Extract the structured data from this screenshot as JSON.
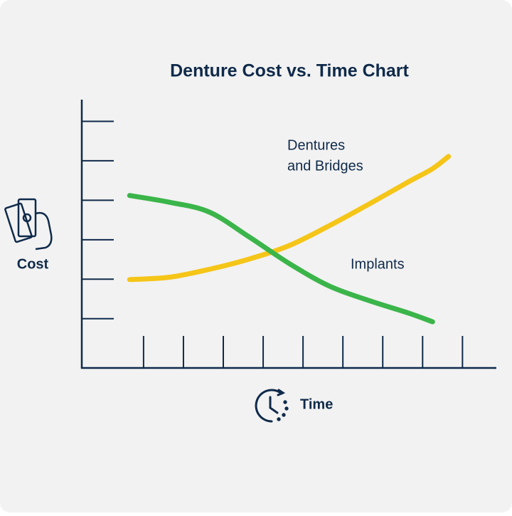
{
  "chart_data": {
    "type": "line",
    "title": "Denture Cost vs. Time Chart",
    "x_label": "Time",
    "y_label": "Cost",
    "annotations": [
      "Dentures",
      "and Bridges",
      "Implants"
    ],
    "x": [
      1.2,
      2.2,
      3.2,
      4.2,
      5.2,
      6.2,
      7.2,
      8.2,
      8.8,
      9.2
    ],
    "series": [
      {
        "color": "#f5c518",
        "values": [
          2.24,
          2.3,
          2.5,
          2.76,
          3.1,
          3.6,
          4.15,
          4.72,
          5.05,
          5.36
        ]
      },
      {
        "color": "#3bb54a",
        "values": [
          4.37,
          4.2,
          3.95,
          3.32,
          2.65,
          2.08,
          1.71,
          1.39,
          1.17,
          null
        ]
      }
    ],
    "xlim": [
      0,
      10.4
    ],
    "ylim": [
      0,
      6.8
    ],
    "xticks": [
      1.55,
      2.55,
      3.55,
      4.55,
      5.55,
      6.55,
      7.55,
      8.55,
      9.55
    ],
    "yticks": [
      1.25,
      2.25,
      3.25,
      4.25,
      5.25,
      6.25
    ]
  }
}
